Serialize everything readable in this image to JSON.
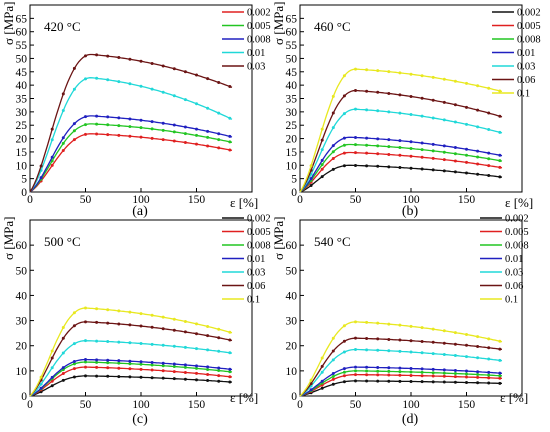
{
  "chart_data": [
    {
      "type": "line",
      "panel_label": "(a)",
      "temperature_label": "420 °C",
      "xlabel": "ε [%]",
      "ylabel": "σ [MPa]",
      "xlim": [
        0,
        200
      ],
      "ylim": [
        0,
        70
      ],
      "xticks": [
        0,
        50,
        100,
        150
      ],
      "yticks": [
        0,
        5,
        10,
        15,
        20,
        25,
        30,
        35,
        40,
        45,
        50,
        55,
        60,
        65
      ],
      "legend_position": "top-right",
      "series": [
        {
          "name": "0.002",
          "color": "#e02020",
          "peak_x": 55,
          "peak_y": 21.8,
          "end_y": 15.5
        },
        {
          "name": "0.005",
          "color": "#22c522",
          "peak_x": 55,
          "peak_y": 25.5,
          "end_y": 18.5
        },
        {
          "name": "0.008",
          "color": "#2020c0",
          "peak_x": 55,
          "peak_y": 28.5,
          "end_y": 20.5
        },
        {
          "name": "0.01",
          "color": "#20d8d8",
          "peak_x": 55,
          "peak_y": 42.8,
          "end_y": 27
        },
        {
          "name": "0.03",
          "color": "#6b1414",
          "peak_x": 55,
          "peak_y": 51.5,
          "end_y": 39
        }
      ]
    },
    {
      "type": "line",
      "panel_label": "(b)",
      "temperature_label": "460 °C",
      "xlabel": "ε [%]",
      "ylabel": "σ [MPa]",
      "xlim": [
        0,
        200
      ],
      "ylim": [
        0,
        70
      ],
      "xticks": [
        0,
        50,
        100,
        150
      ],
      "yticks": [
        0,
        5,
        10,
        15,
        20,
        25,
        30,
        35,
        40,
        45,
        50,
        55,
        60,
        65
      ],
      "legend_position": "top-right",
      "series": [
        {
          "name": "0.002",
          "color": "#111111",
          "peak_x": 45,
          "peak_y": 10,
          "end_y": 5.5
        },
        {
          "name": "0.005",
          "color": "#e02020",
          "peak_x": 45,
          "peak_y": 14.8,
          "end_y": 9
        },
        {
          "name": "0.008",
          "color": "#22c522",
          "peak_x": 45,
          "peak_y": 17.8,
          "end_y": 11.5
        },
        {
          "name": "0.01",
          "color": "#2020c0",
          "peak_x": 45,
          "peak_y": 20.5,
          "end_y": 13.5
        },
        {
          "name": "0.03",
          "color": "#20d8d8",
          "peak_x": 50,
          "peak_y": 31,
          "end_y": 22
        },
        {
          "name": "0.06",
          "color": "#6b1414",
          "peak_x": 50,
          "peak_y": 38,
          "end_y": 28
        },
        {
          "name": "0.1",
          "color": "#e8e820",
          "peak_x": 50,
          "peak_y": 46,
          "end_y": 37.5
        }
      ]
    },
    {
      "type": "line",
      "panel_label": "(c)",
      "temperature_label": "500 °C",
      "xlabel": "ε [%]",
      "ylabel": "σ [MPa]",
      "xlim": [
        0,
        200
      ],
      "ylim": [
        0,
        70
      ],
      "xticks": [
        0,
        50,
        100,
        150
      ],
      "yticks": [
        0,
        10,
        20,
        30,
        40,
        50,
        60
      ],
      "legend_position": "top-right",
      "series": [
        {
          "name": "0.002",
          "color": "#111111",
          "peak_x": 50,
          "peak_y": 8,
          "end_y": 5.5
        },
        {
          "name": "0.005",
          "color": "#e02020",
          "peak_x": 50,
          "peak_y": 11.5,
          "end_y": 7.5
        },
        {
          "name": "0.008",
          "color": "#22c522",
          "peak_x": 50,
          "peak_y": 13.5,
          "end_y": 9.5
        },
        {
          "name": "0.01",
          "color": "#2020c0",
          "peak_x": 50,
          "peak_y": 14.5,
          "end_y": 10.5
        },
        {
          "name": "0.03",
          "color": "#20d8d8",
          "peak_x": 50,
          "peak_y": 22,
          "end_y": 17
        },
        {
          "name": "0.06",
          "color": "#6b1414",
          "peak_x": 50,
          "peak_y": 29.5,
          "end_y": 22
        },
        {
          "name": "0.1",
          "color": "#e8e820",
          "peak_x": 50,
          "peak_y": 35,
          "end_y": 25
        }
      ]
    },
    {
      "type": "line",
      "panel_label": "(d)",
      "temperature_label": "540 °C",
      "xlabel": "ε [%]",
      "ylabel": "σ [MPa]",
      "xlim": [
        0,
        200
      ],
      "ylim": [
        0,
        70
      ],
      "xticks": [
        0,
        50,
        100,
        150
      ],
      "yticks": [
        0,
        10,
        20,
        30,
        40,
        50,
        60
      ],
      "legend_position": "top-right",
      "series": [
        {
          "name": "0.002",
          "color": "#111111",
          "peak_x": 50,
          "peak_y": 6,
          "end_y": 5
        },
        {
          "name": "0.005",
          "color": "#e02020",
          "peak_x": 50,
          "peak_y": 8.5,
          "end_y": 7
        },
        {
          "name": "0.008",
          "color": "#22c522",
          "peak_x": 50,
          "peak_y": 10,
          "end_y": 8
        },
        {
          "name": "0.01",
          "color": "#2020c0",
          "peak_x": 50,
          "peak_y": 11.5,
          "end_y": 9
        },
        {
          "name": "0.03",
          "color": "#20d8d8",
          "peak_x": 50,
          "peak_y": 18.5,
          "end_y": 14
        },
        {
          "name": "0.06",
          "color": "#6b1414",
          "peak_x": 50,
          "peak_y": 23,
          "end_y": 18.5
        },
        {
          "name": "0.1",
          "color": "#e8e820",
          "peak_x": 50,
          "peak_y": 29.5,
          "end_y": 21.5
        }
      ]
    }
  ]
}
